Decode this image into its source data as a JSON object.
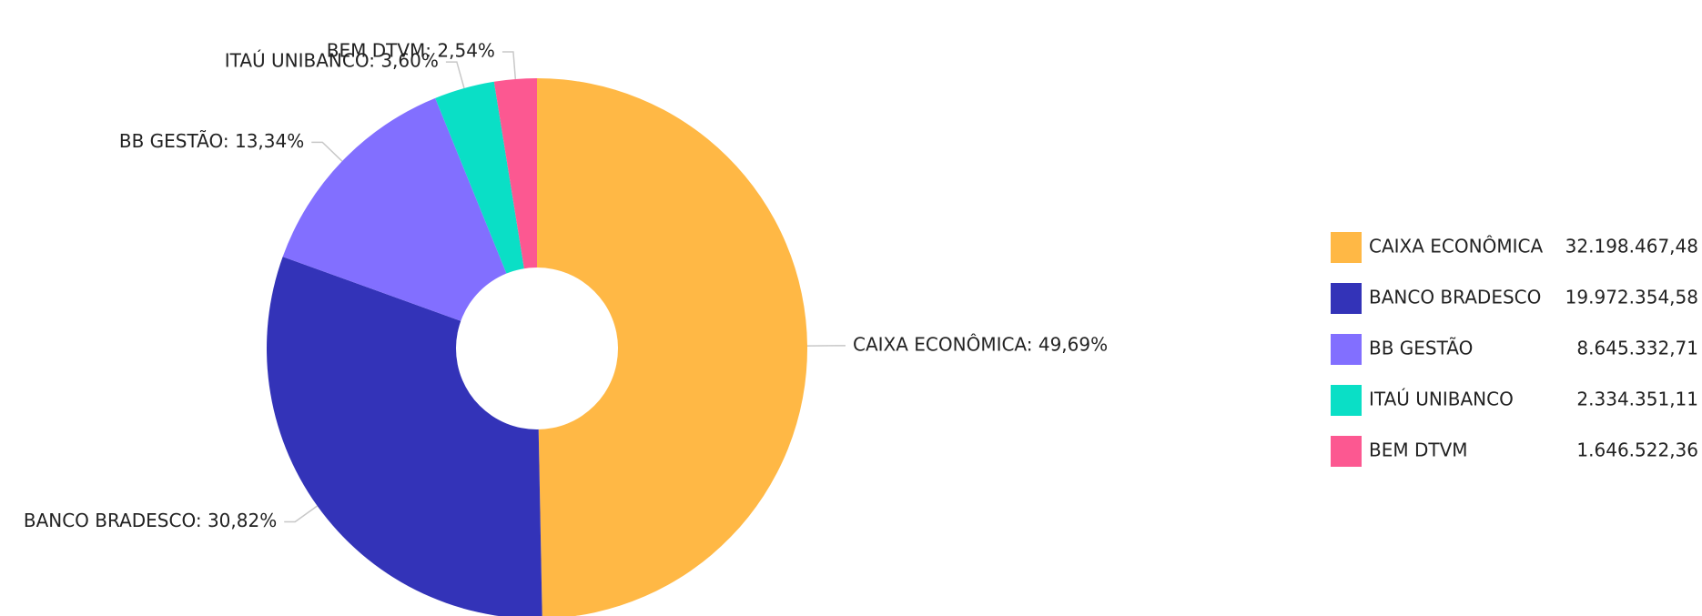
{
  "chart_data": {
    "type": "pie",
    "variant": "donut",
    "title": "",
    "slices": [
      {
        "name": "CAIXA ECONÔMICA",
        "value": 32198467.48,
        "value_label": "32.198.467,48",
        "percent_label": "49,69%",
        "color": "#FFB845"
      },
      {
        "name": "BANCO BRADESCO",
        "value": 19972354.58,
        "value_label": "19.972.354,58",
        "percent_label": "30,82%",
        "color": "#3333B8"
      },
      {
        "name": "BB GESTÃO",
        "value": 8645332.71,
        "value_label": "8.645.332,71",
        "percent_label": "13,34%",
        "color": "#826FFF"
      },
      {
        "name": "ITAÚ UNIBANCO",
        "value": 2334351.11,
        "value_label": "2.334.351,11",
        "percent_label": "3,60%",
        "color": "#0ADFC6"
      },
      {
        "name": "BEM DTVM",
        "value": 1646522.36,
        "value_label": "1.646.522,36",
        "percent_label": "2,54%",
        "color": "#FC5891"
      }
    ],
    "legend": {
      "position": "right"
    }
  }
}
